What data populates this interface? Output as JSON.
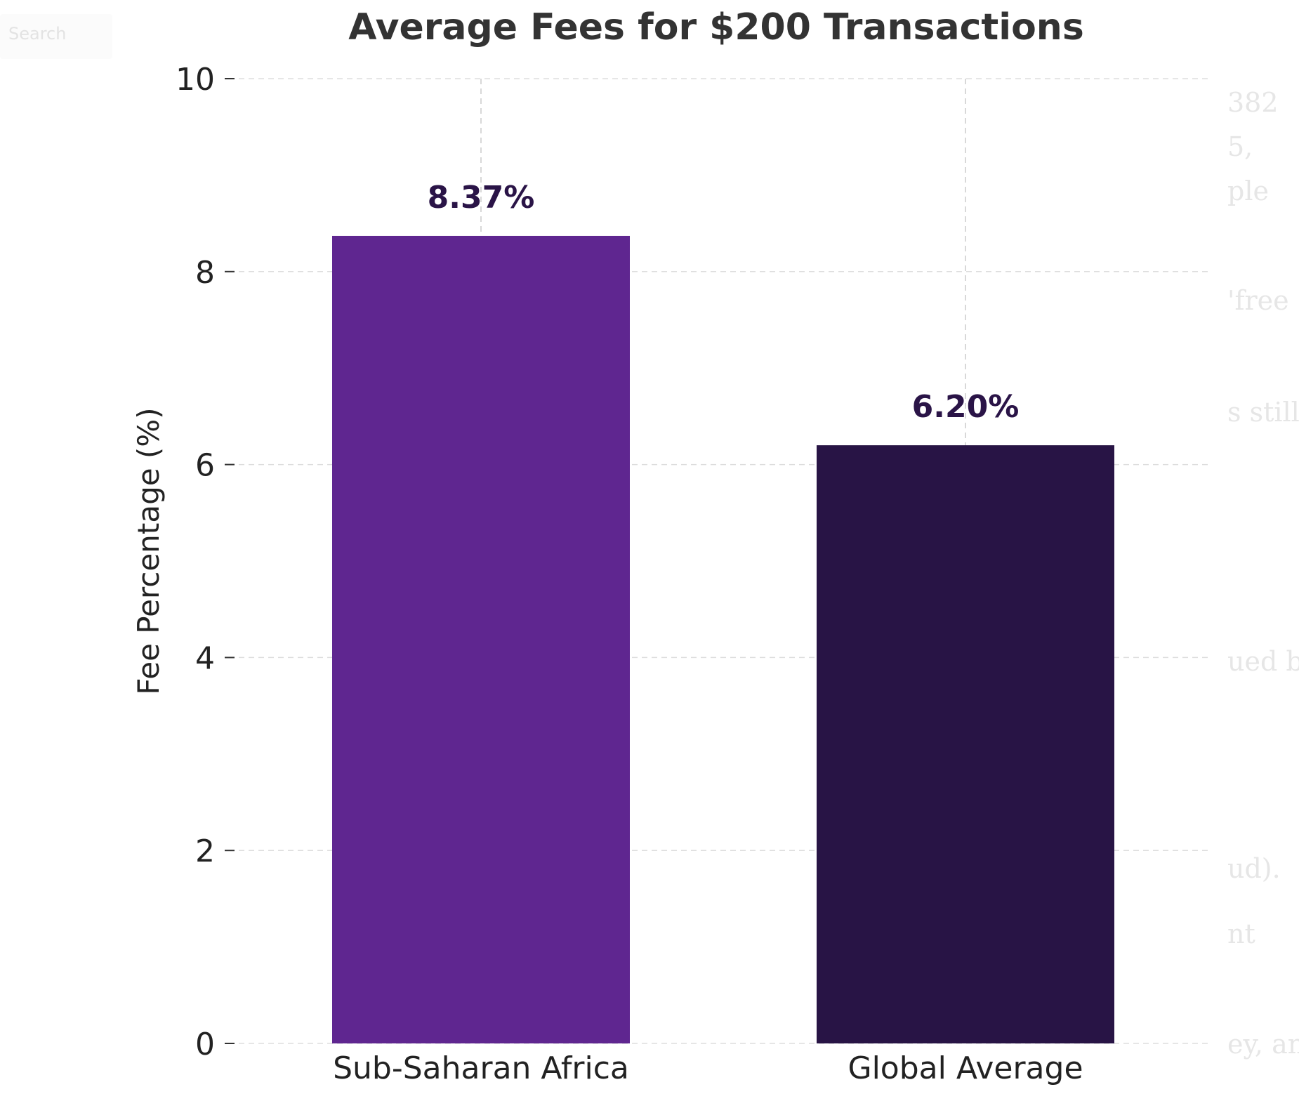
{
  "search": {
    "placeholder": "Search"
  },
  "background_text": [
    "382",
    "5,",
    "ple",
    "'free",
    "s still",
    "ued by",
    "ud).",
    "nt",
    "ey, and"
  ],
  "chart_data": {
    "type": "bar",
    "title": "Average Fees for $200 Transactions",
    "xlabel": "",
    "ylabel": "Fee Percentage (%)",
    "categories": [
      "Sub-Saharan Africa",
      "Global Average"
    ],
    "values": [
      8.37,
      6.2
    ],
    "value_labels": [
      "8.37%",
      "6.20%"
    ],
    "colors": [
      "#5f2690",
      "#281445"
    ],
    "ylim": [
      0,
      10
    ],
    "yticks": [
      0,
      2,
      4,
      6,
      8,
      10
    ],
    "grid": true,
    "legend": "none"
  }
}
